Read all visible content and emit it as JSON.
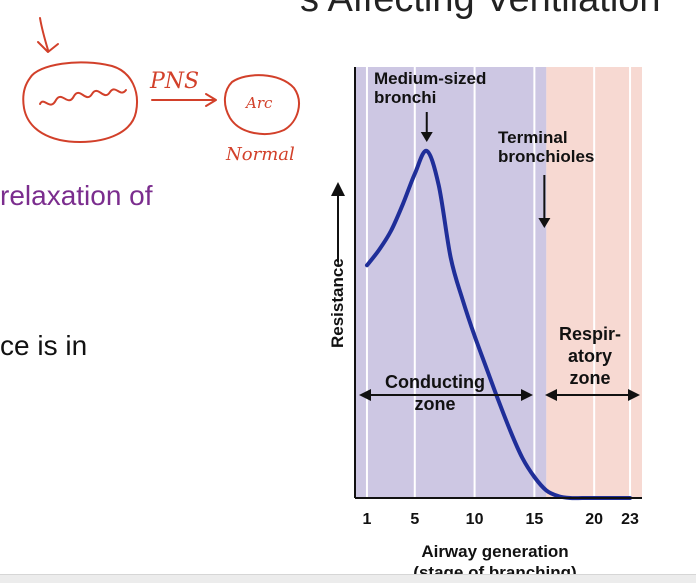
{
  "slide": {
    "title": "s Affecting Ventilation",
    "line1": "relaxation of",
    "line2": "ce is in"
  },
  "annotation": {
    "pns_label": "PNS",
    "small_circle_label": "Arc",
    "normal_label": "Normal"
  },
  "colors": {
    "conducting_zone": "#cdc7e3",
    "respiratory_zone": "#f7d9d2",
    "curve": "#1f2e99",
    "annotation": "#d2402a",
    "purple_text": "#7b2d8e"
  },
  "chart_data": {
    "type": "line",
    "x": [
      1,
      2,
      3,
      4,
      5,
      6,
      7,
      8,
      9,
      10,
      11,
      12,
      13,
      14,
      15,
      16,
      17,
      18,
      19,
      20,
      21,
      22,
      23
    ],
    "y": [
      6.1,
      6.5,
      7.0,
      7.7,
      8.5,
      9.1,
      8.2,
      6.3,
      5.2,
      4.25,
      3.4,
      2.55,
      1.75,
      1.05,
      0.55,
      0.2,
      0.05,
      0.0,
      0.0,
      0.0,
      0.0,
      0.0,
      0.0
    ],
    "xlim": [
      0,
      24
    ],
    "ylim": [
      0,
      11.3
    ],
    "x_ticks": [
      1,
      5,
      10,
      15,
      20,
      23
    ],
    "xlabel": "Airway generation",
    "xlabel_sub": "(stage of branching)",
    "ylabel": "Resistance",
    "zones": [
      {
        "label": "Conducting\nzone",
        "from": 0,
        "to": 16,
        "color": "#cdc7e3"
      },
      {
        "label": "Respir-\natory\nzone",
        "from": 16,
        "to": 24,
        "color": "#f7d9d2"
      }
    ],
    "callouts": [
      {
        "label": "Medium-sized\nbronchi",
        "x": 6
      },
      {
        "label": "Terminal\nbronchioles",
        "x": 15.5
      }
    ]
  }
}
